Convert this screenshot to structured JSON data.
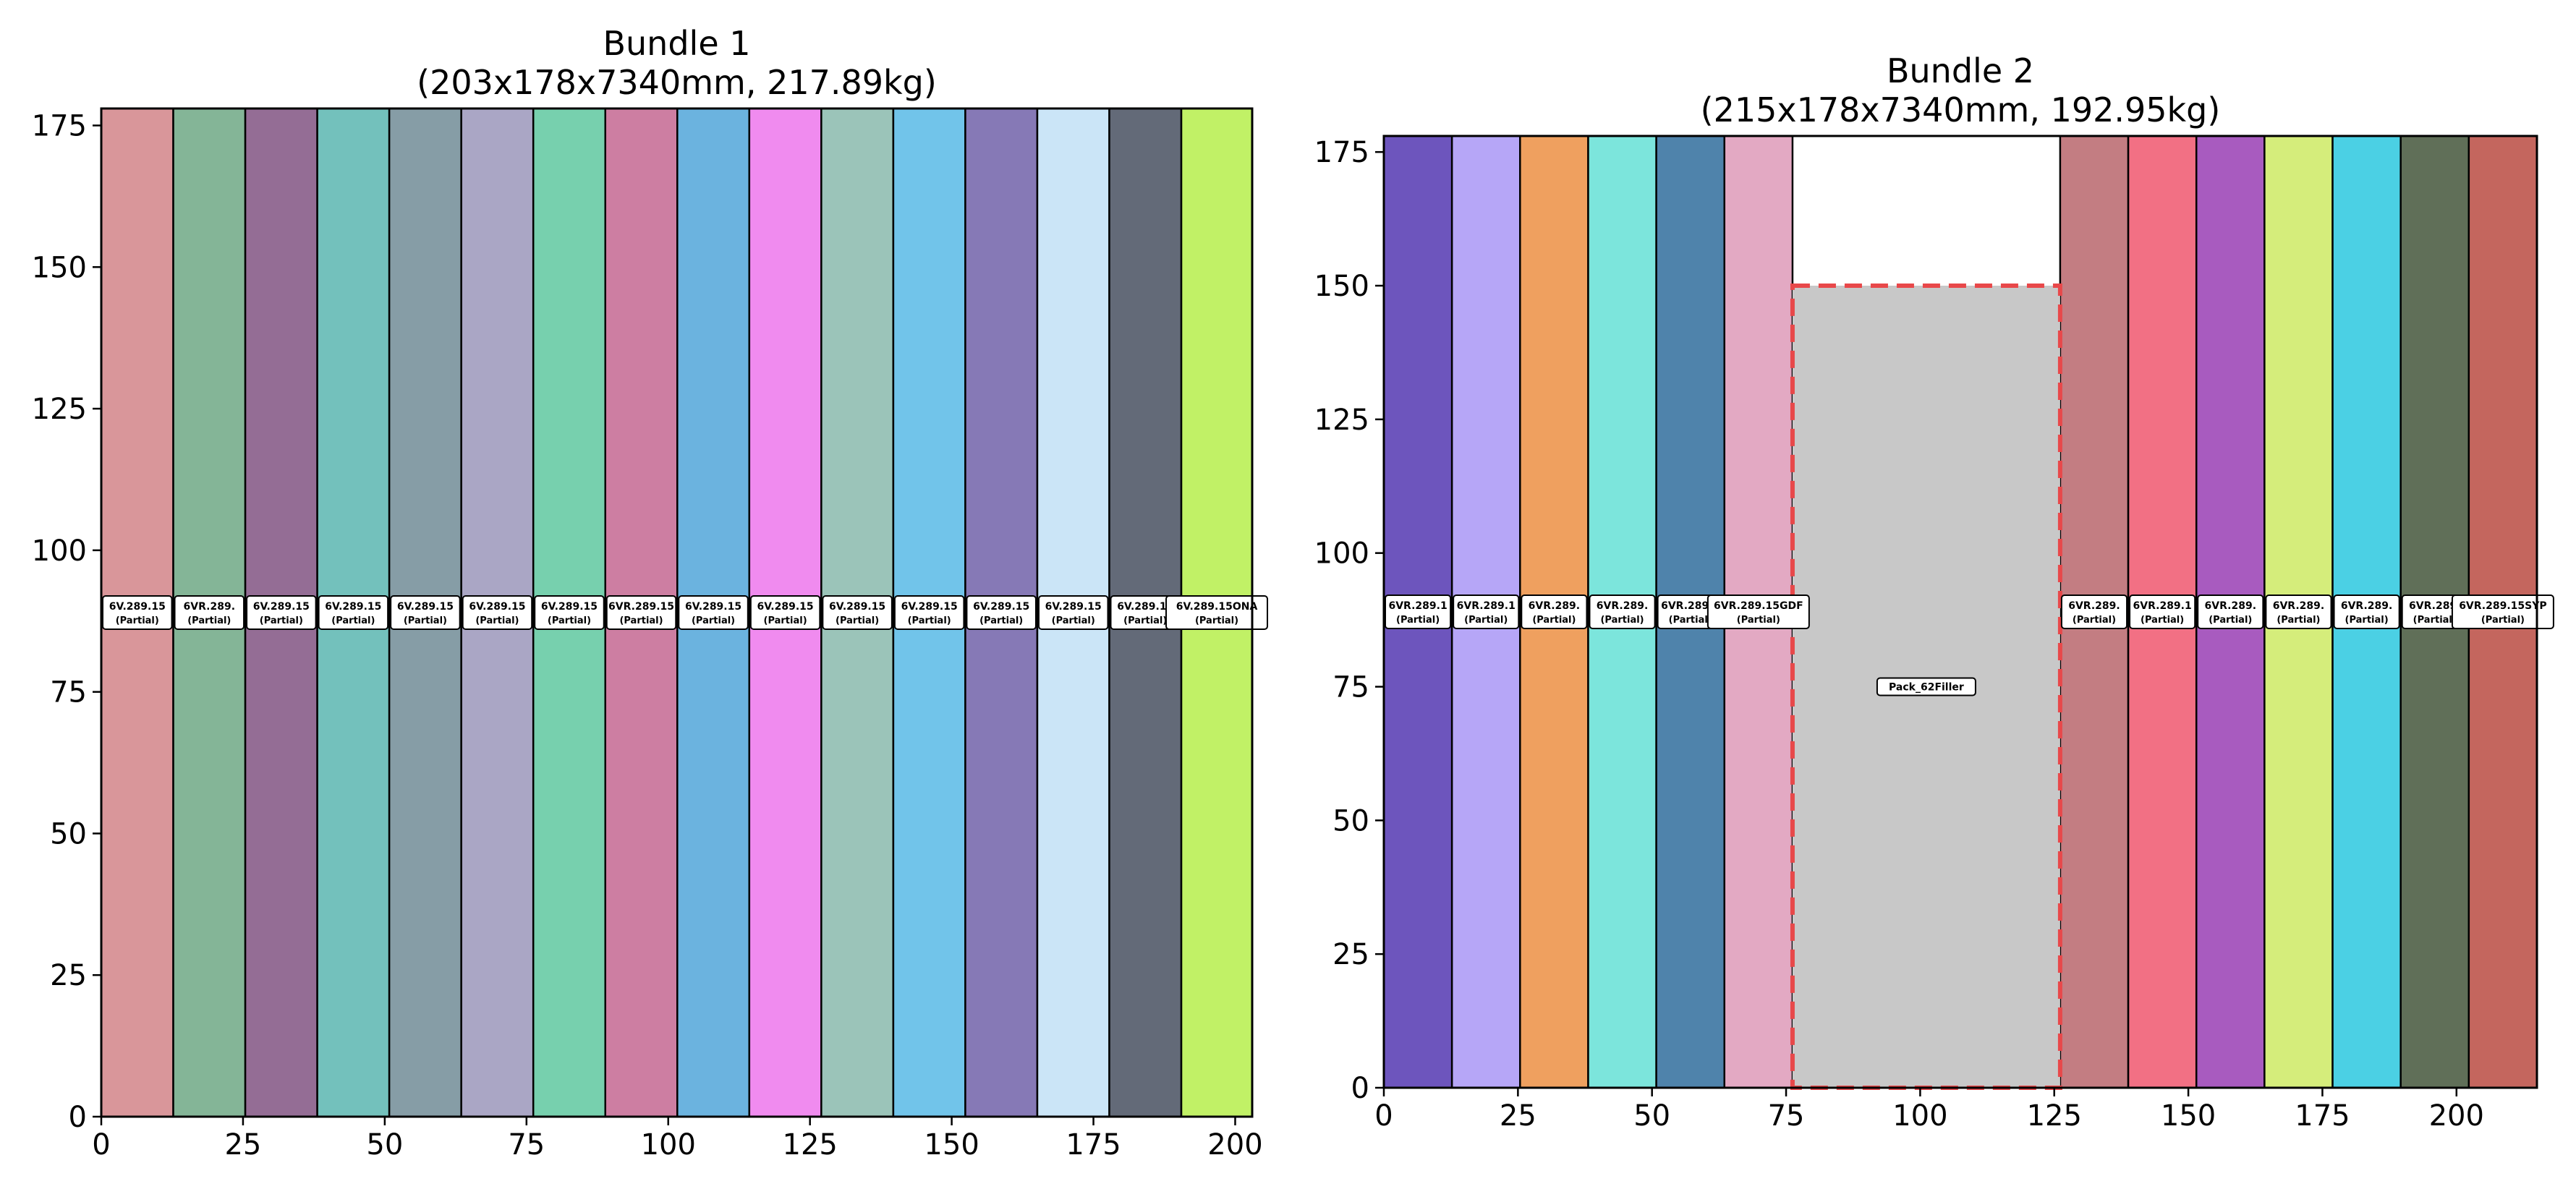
{
  "chart_data": [
    {
      "type": "bar",
      "title": "Bundle 1",
      "subtitle": "(203x178x7340mm, 217.89kg)",
      "xlim": [
        0,
        203
      ],
      "ylim": [
        0,
        178
      ],
      "xticks": [
        0,
        25,
        50,
        75,
        100,
        125,
        150,
        175,
        200
      ],
      "yticks": [
        0,
        25,
        50,
        75,
        100,
        125,
        150,
        175
      ],
      "label_y": 89,
      "bars": [
        {
          "x0": 0,
          "width": 12.7,
          "height": 178,
          "color": "#d9969a",
          "label": "6V.289.15",
          "sublabel": "(Partial)"
        },
        {
          "x0": 12.7,
          "width": 12.7,
          "height": 178,
          "color": "#84b597",
          "label": "6VR.289.",
          "sublabel": "(Partial)"
        },
        {
          "x0": 25.4,
          "width": 12.7,
          "height": 178,
          "color": "#946d95",
          "label": "6V.289.15",
          "sublabel": "(Partial)"
        },
        {
          "x0": 38.1,
          "width": 12.7,
          "height": 178,
          "color": "#73c1bc",
          "label": "6V.289.15",
          "sublabel": "(Partial)"
        },
        {
          "x0": 50.8,
          "width": 12.7,
          "height": 178,
          "color": "#869da6",
          "label": "6V.289.15",
          "sublabel": "(Partial)"
        },
        {
          "x0": 63.5,
          "width": 12.7,
          "height": 178,
          "color": "#aaa6c5",
          "label": "6V.289.15",
          "sublabel": "(Partial)"
        },
        {
          "x0": 76.2,
          "width": 12.7,
          "height": 178,
          "color": "#77d0ae",
          "label": "6V.289.15",
          "sublabel": "(Partial)"
        },
        {
          "x0": 88.9,
          "width": 12.7,
          "height": 178,
          "color": "#cd7ea2",
          "label": "6VR.289.15",
          "sublabel": "(Partial)"
        },
        {
          "x0": 101.6,
          "width": 12.7,
          "height": 178,
          "color": "#6bb3df",
          "label": "6V.289.15",
          "sublabel": "(Partial)"
        },
        {
          "x0": 114.3,
          "width": 12.7,
          "height": 178,
          "color": "#f08bef",
          "label": "6V.289.15",
          "sublabel": "(Partial)"
        },
        {
          "x0": 127,
          "width": 12.7,
          "height": 178,
          "color": "#9bc4b9",
          "label": "6V.289.15",
          "sublabel": "(Partial)"
        },
        {
          "x0": 139.7,
          "width": 12.7,
          "height": 178,
          "color": "#71c4ea",
          "label": "6V.289.15",
          "sublabel": "(Partial)"
        },
        {
          "x0": 152.4,
          "width": 12.7,
          "height": 178,
          "color": "#8679b6",
          "label": "6V.289.15",
          "sublabel": "(Partial)"
        },
        {
          "x0": 165.1,
          "width": 12.7,
          "height": 178,
          "color": "#cbe5f7",
          "label": "6V.289.15",
          "sublabel": "(Partial)"
        },
        {
          "x0": 177.8,
          "width": 12.7,
          "height": 178,
          "color": "#636a78",
          "label": "6V.289.15",
          "sublabel": "(Partial)"
        },
        {
          "x0": 190.5,
          "width": 12.5,
          "height": 178,
          "color": "#c1f166",
          "label": "6V.289.15ONA",
          "sublabel": "(Partial)"
        }
      ]
    },
    {
      "type": "bar",
      "title": "Bundle 2",
      "subtitle": "(215x178x7340mm, 192.95kg)",
      "xlim": [
        0,
        215
      ],
      "ylim": [
        0,
        178
      ],
      "xticks": [
        0,
        25,
        50,
        75,
        100,
        125,
        150,
        175,
        200
      ],
      "yticks": [
        0,
        25,
        50,
        75,
        100,
        125,
        150,
        175
      ],
      "label_y": 89,
      "bars": [
        {
          "x0": 0,
          "width": 12.7,
          "height": 178,
          "color": "#6d55bd",
          "label": "6VR.289.1",
          "sublabel": "(Partial)"
        },
        {
          "x0": 12.7,
          "width": 12.7,
          "height": 178,
          "color": "#b6a6f7",
          "label": "6VR.289.1",
          "sublabel": "(Partial)"
        },
        {
          "x0": 25.4,
          "width": 12.7,
          "height": 178,
          "color": "#efa05f",
          "label": "6VR.289.",
          "sublabel": "(Partial)"
        },
        {
          "x0": 38.1,
          "width": 12.7,
          "height": 178,
          "color": "#7ce5dc",
          "label": "6VR.289.",
          "sublabel": "(Partial)"
        },
        {
          "x0": 50.8,
          "width": 12.7,
          "height": 178,
          "color": "#4f83ab",
          "label": "6VR.289.1",
          "sublabel": "(Partial)"
        },
        {
          "x0": 63.5,
          "width": 12.7,
          "height": 178,
          "color": "#e3a9c3",
          "label": "6VR.289.15GDF",
          "sublabel": "(Partial)"
        },
        {
          "x0": 126.1,
          "width": 12.7,
          "height": 178,
          "color": "#c37d82",
          "label": "6VR.289.",
          "sublabel": "(Partial)"
        },
        {
          "x0": 138.8,
          "width": 12.7,
          "height": 178,
          "color": "#f27084",
          "label": "6VR.289.1",
          "sublabel": "(Partial)"
        },
        {
          "x0": 151.5,
          "width": 12.7,
          "height": 178,
          "color": "#a85bbf",
          "label": "6VR.289.",
          "sublabel": "(Partial)"
        },
        {
          "x0": 164.2,
          "width": 12.7,
          "height": 178,
          "color": "#d5ed7b",
          "label": "6VR.289.",
          "sublabel": "(Partial)"
        },
        {
          "x0": 176.9,
          "width": 12.7,
          "height": 178,
          "color": "#4bd0e4",
          "label": "6VR.289.",
          "sublabel": "(Partial)"
        },
        {
          "x0": 189.6,
          "width": 12.7,
          "height": 178,
          "color": "#606f58",
          "label": "6VR.289.",
          "sublabel": "(Partial)"
        },
        {
          "x0": 202.3,
          "width": 12.7,
          "height": 178,
          "color": "#c4665e",
          "label": "6VR.289.15SYP",
          "sublabel": "(Partial)"
        }
      ],
      "fillers": [
        {
          "x0": 76.2,
          "width": 49.9,
          "height": 150,
          "color": "#c8c8c8",
          "edge_color": "#e8484a",
          "label": "Pack_62Filler"
        }
      ]
    }
  ]
}
